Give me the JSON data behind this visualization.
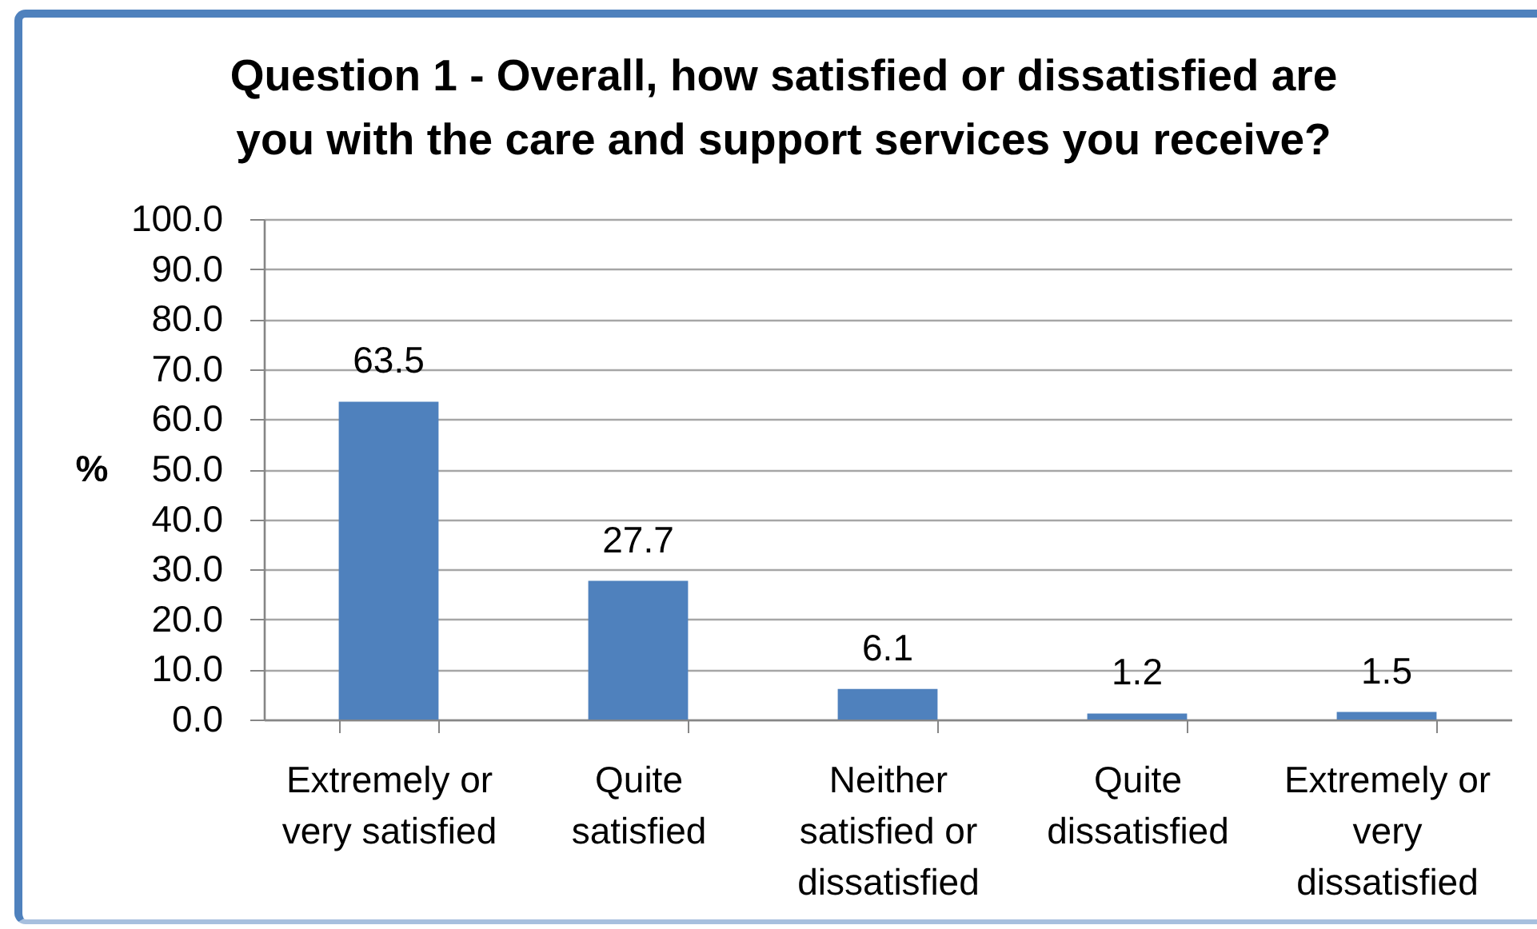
{
  "chart_data": {
    "type": "bar",
    "title": "Question 1 - Overall, how satisfied or dissatisfied are\nyou with the care and support services you receive?",
    "ylabel": "%",
    "categories": [
      "Extremely or very satisfied",
      "Quite satisfied",
      "Neither satisfied or dissatisfied",
      "Quite dissatisfied",
      "Extremely or very dissatisfied"
    ],
    "values": [
      63.5,
      27.7,
      6.1,
      1.2,
      1.5
    ],
    "color": "#4f81bd",
    "ylim": [
      0,
      100
    ],
    "yticks": [
      {
        "value": 0,
        "label": "0.0"
      },
      {
        "value": 10,
        "label": "10.0"
      },
      {
        "value": 20,
        "label": "20.0"
      },
      {
        "value": 30,
        "label": "30.0"
      },
      {
        "value": 40,
        "label": "40.0"
      },
      {
        "value": 50,
        "label": "50.0"
      },
      {
        "value": 60,
        "label": "60.0"
      },
      {
        "value": 70,
        "label": "70.0"
      },
      {
        "value": 80,
        "label": "80.0"
      },
      {
        "value": 90,
        "label": "90.0"
      },
      {
        "value": 100,
        "label": "100.0"
      }
    ],
    "grid": "y",
    "data_labels": true
  }
}
